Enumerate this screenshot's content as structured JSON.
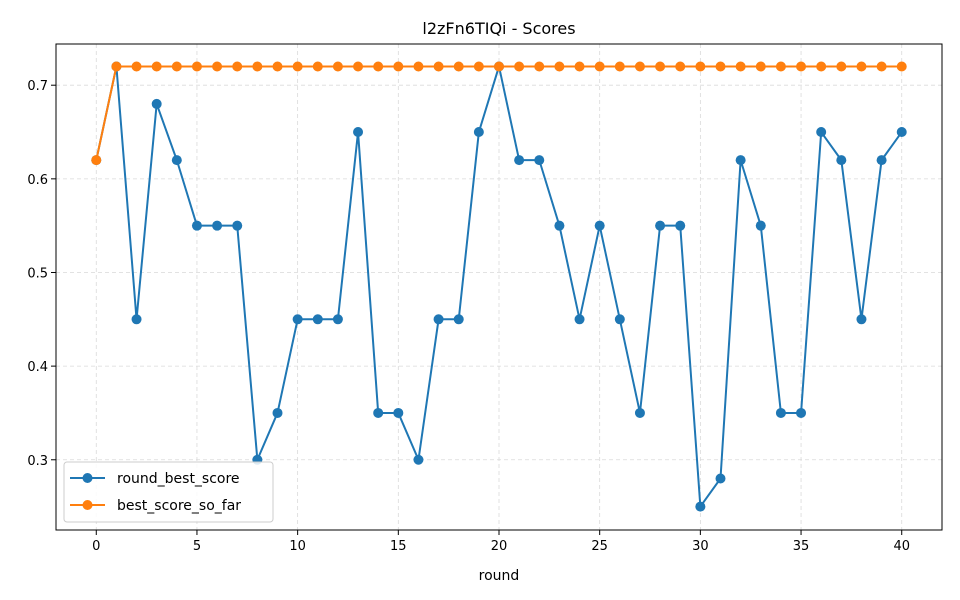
{
  "chart_data": {
    "type": "line",
    "title": "l2zFn6TIQi - Scores",
    "xlabel": "round",
    "ylabel": "",
    "xlim": [
      -2,
      42
    ],
    "ylim": [
      0.225,
      0.744
    ],
    "xticks": [
      0,
      5,
      10,
      15,
      20,
      25,
      30,
      35,
      40
    ],
    "yticks": [
      0.3,
      0.4,
      0.5,
      0.6,
      0.7
    ],
    "grid": true,
    "legend_position": "lower-left",
    "x": [
      0,
      1,
      2,
      3,
      4,
      5,
      6,
      7,
      8,
      9,
      10,
      11,
      12,
      13,
      14,
      15,
      16,
      17,
      18,
      19,
      20,
      21,
      22,
      23,
      24,
      25,
      26,
      27,
      28,
      29,
      30,
      31,
      32,
      33,
      34,
      35,
      36,
      37,
      38,
      39,
      40
    ],
    "series": [
      {
        "name": "round_best_score",
        "color": "#1f77b4",
        "values": [
          0.62,
          0.72,
          0.45,
          0.68,
          0.62,
          0.55,
          0.55,
          0.55,
          0.3,
          0.35,
          0.45,
          0.45,
          0.45,
          0.65,
          0.35,
          0.35,
          0.3,
          0.45,
          0.45,
          0.65,
          0.72,
          0.62,
          0.62,
          0.55,
          0.45,
          0.55,
          0.45,
          0.35,
          0.55,
          0.55,
          0.25,
          0.28,
          0.62,
          0.55,
          0.35,
          0.35,
          0.65,
          0.62,
          0.45,
          0.62,
          0.65
        ]
      },
      {
        "name": "best_score_so_far",
        "color": "#ff7f0e",
        "values": [
          0.62,
          0.72,
          0.72,
          0.72,
          0.72,
          0.72,
          0.72,
          0.72,
          0.72,
          0.72,
          0.72,
          0.72,
          0.72,
          0.72,
          0.72,
          0.72,
          0.72,
          0.72,
          0.72,
          0.72,
          0.72,
          0.72,
          0.72,
          0.72,
          0.72,
          0.72,
          0.72,
          0.72,
          0.72,
          0.72,
          0.72,
          0.72,
          0.72,
          0.72,
          0.72,
          0.72,
          0.72,
          0.72,
          0.72,
          0.72,
          0.72
        ]
      }
    ]
  }
}
